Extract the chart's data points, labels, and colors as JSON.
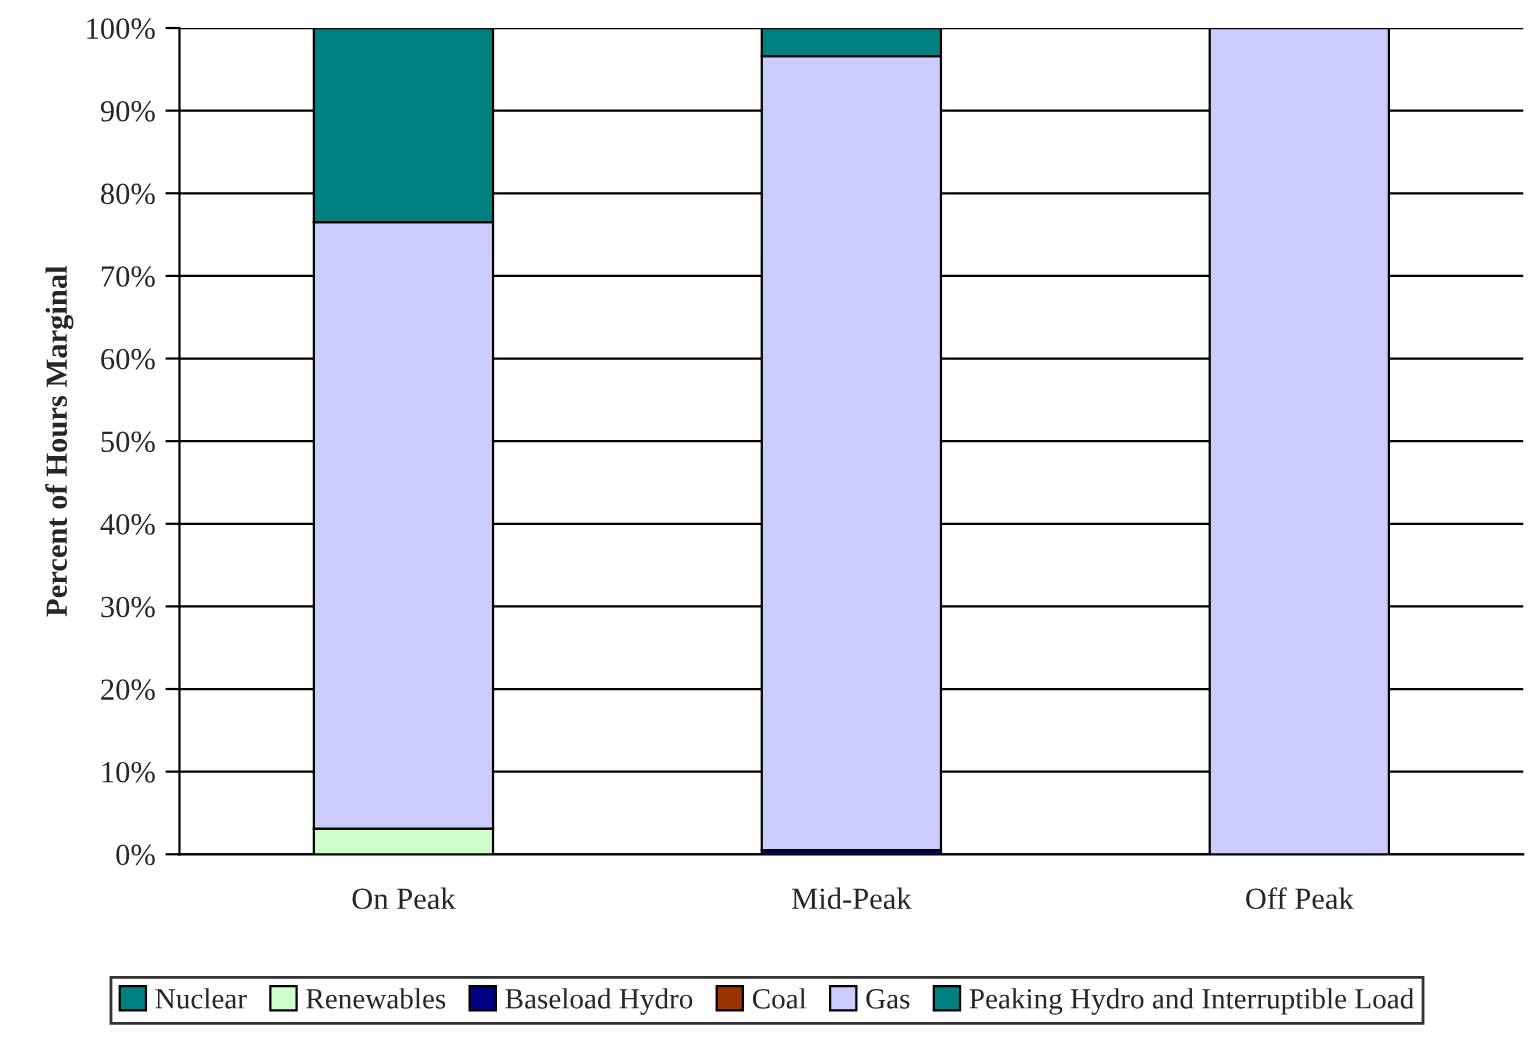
{
  "chart_data": {
    "type": "bar",
    "stacked": true,
    "ylabel": "Percent of Hours Marginal",
    "categories": [
      "On Peak",
      "Mid-Peak",
      "Off Peak"
    ],
    "series": [
      {
        "name": "Nuclear",
        "color": "#008080",
        "values": [
          0,
          0,
          0
        ]
      },
      {
        "name": "Renewables",
        "color": "#ccffcc",
        "values": [
          3.1,
          null,
          0
        ]
      },
      {
        "name": "Baseload Hydro",
        "color": "#000080",
        "values": [
          0,
          0.5,
          0
        ]
      },
      {
        "name": "Coal",
        "color": "#993300",
        "values": [
          0,
          0,
          0
        ]
      },
      {
        "name": "Gas",
        "color": "#ccccff",
        "values": [
          73.4,
          96.1,
          100
        ]
      },
      {
        "name": "Peaking Hydro and Interruptible Load",
        "color": "#008080",
        "values": [
          23.5,
          3.4,
          0
        ]
      }
    ],
    "ylim": [
      0,
      100
    ],
    "yticks": [
      {
        "value": 0,
        "label": "0%"
      },
      {
        "value": 10,
        "label": "10%"
      },
      {
        "value": 20,
        "label": "20%"
      },
      {
        "value": 30,
        "label": "30%"
      },
      {
        "value": 40,
        "label": "40%"
      },
      {
        "value": 50,
        "label": "50%"
      },
      {
        "value": 60,
        "label": "60%"
      },
      {
        "value": 70,
        "label": "70%"
      },
      {
        "value": 80,
        "label": "80%"
      },
      {
        "value": 90,
        "label": "90%"
      },
      {
        "value": 100,
        "label": "100%"
      }
    ],
    "grid": "y",
    "legend": "bottom"
  }
}
